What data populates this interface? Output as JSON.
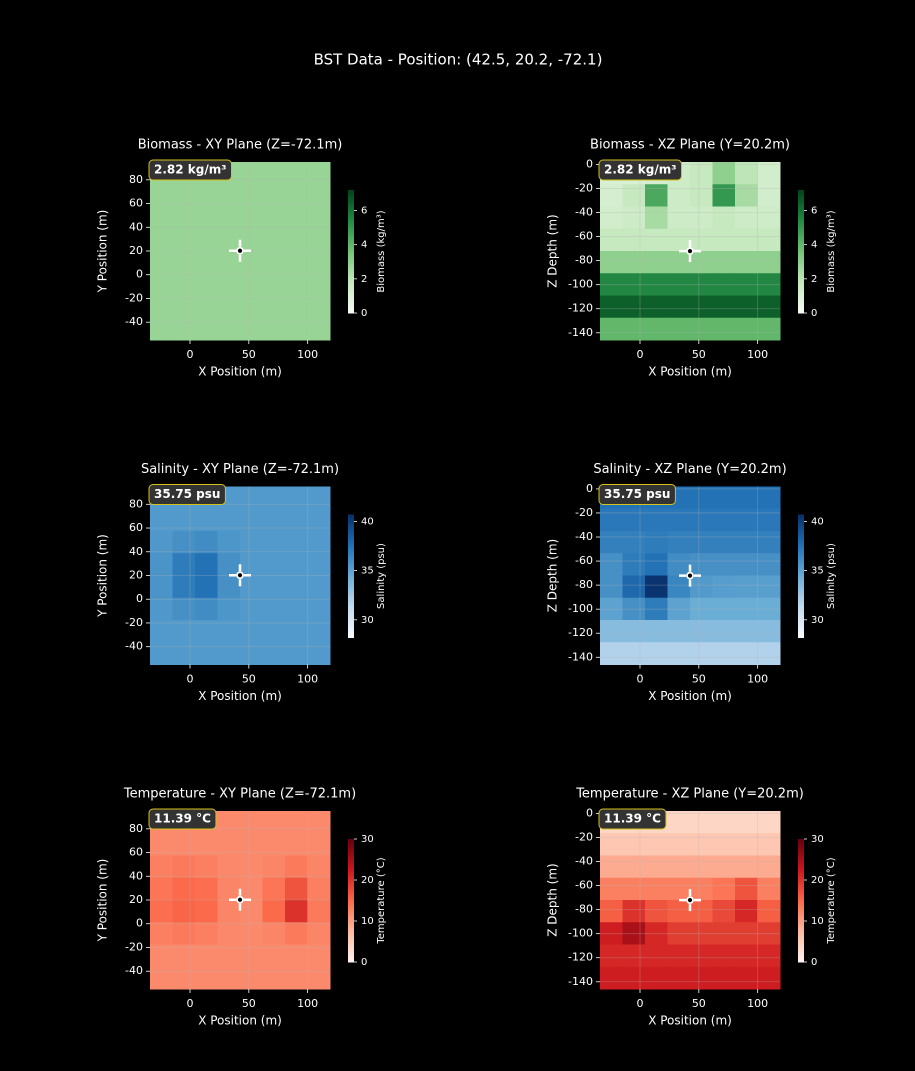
{
  "title": "BST Data - Position: (42.5, 20.2, -72.1)",
  "chart_data": [
    {
      "type": "heatmap",
      "title": "Biomass - XY Plane (Z=-72.1m)",
      "x_label": "X Position (m)",
      "y_label": "Y Position (m)",
      "xlim": [
        -34,
        119
      ],
      "ylim": [
        -55,
        95
      ],
      "xticks": [
        0,
        50,
        100
      ],
      "yticks": [
        -40,
        -20,
        0,
        20,
        40,
        60,
        80
      ],
      "cmap": "Greens",
      "colorbar_label": "Biomass (kg/m³)",
      "colorbar_lim": [
        0,
        7.2
      ],
      "colorbar_ticks": [
        0,
        2,
        4,
        6
      ],
      "annotation": "2.82 kg/m³",
      "marker": [
        42.5,
        20.2
      ],
      "grid": true,
      "values": [
        [
          2.8,
          2.8,
          2.8,
          2.8,
          2.8,
          2.8,
          2.8,
          2.8
        ],
        [
          2.8,
          2.8,
          2.8,
          2.8,
          2.8,
          2.8,
          2.8,
          2.8
        ],
        [
          2.8,
          2.8,
          2.8,
          2.8,
          2.8,
          2.8,
          2.8,
          2.8
        ],
        [
          2.8,
          2.8,
          2.8,
          2.8,
          2.8,
          2.8,
          2.8,
          2.8
        ],
        [
          2.8,
          2.8,
          2.8,
          2.8,
          2.8,
          2.8,
          2.8,
          2.8
        ],
        [
          2.8,
          2.8,
          2.8,
          2.8,
          2.8,
          2.8,
          2.8,
          2.8
        ],
        [
          2.8,
          2.8,
          2.8,
          2.8,
          2.8,
          2.8,
          2.8,
          2.8
        ],
        [
          2.8,
          2.8,
          2.8,
          2.8,
          2.8,
          2.8,
          2.8,
          2.8
        ]
      ]
    },
    {
      "type": "heatmap",
      "title": "Biomass - XZ Plane (Y=20.2m)",
      "x_label": "X Position (m)",
      "y_label": "Z Depth (m)",
      "xlim": [
        -34,
        119
      ],
      "ylim": [
        -146,
        2
      ],
      "xticks": [
        0,
        50,
        100
      ],
      "yticks": [
        -140,
        -120,
        -100,
        -80,
        -60,
        -40,
        -20,
        0
      ],
      "cmap": "Greens",
      "colorbar_label": "Biomass (kg/m³)",
      "colorbar_lim": [
        0,
        7.2
      ],
      "colorbar_ticks": [
        0,
        2,
        4,
        6
      ],
      "annotation": "2.82 kg/m³",
      "marker": [
        42.5,
        -72.1
      ],
      "grid": true,
      "values": [
        [
          1.2,
          1.2,
          1.3,
          1.5,
          1.8,
          3,
          2,
          1.4
        ],
        [
          1.3,
          1.8,
          4.5,
          1.6,
          1.8,
          5,
          2.5,
          1.4
        ],
        [
          1.4,
          1.6,
          2.5,
          1.6,
          1.6,
          1.8,
          1.6,
          1.5
        ],
        [
          1.8,
          1.8,
          1.8,
          1.8,
          1.8,
          1.8,
          1.8,
          1.8
        ],
        [
          3,
          3,
          3,
          3,
          3,
          3,
          3,
          3
        ],
        [
          5.5,
          5.5,
          5.5,
          5.5,
          5.5,
          5.5,
          5.5,
          5.5
        ],
        [
          6.5,
          6.5,
          6.5,
          6.5,
          6.5,
          6.5,
          6.5,
          6.5
        ],
        [
          4,
          4,
          4,
          4,
          4,
          4,
          4,
          4
        ]
      ]
    },
    {
      "type": "heatmap",
      "title": "Salinity - XY Plane (Z=-72.1m)",
      "x_label": "X Position (m)",
      "y_label": "Y Position (m)",
      "xlim": [
        -34,
        119
      ],
      "ylim": [
        -55,
        95
      ],
      "xticks": [
        0,
        50,
        100
      ],
      "yticks": [
        -40,
        -20,
        0,
        20,
        40,
        60,
        80
      ],
      "cmap": "Blues",
      "colorbar_label": "Salinity (psu)",
      "colorbar_lim": [
        28.2,
        40.7
      ],
      "colorbar_ticks": [
        30,
        35,
        40
      ],
      "annotation": "35.75 psu",
      "marker": [
        42.5,
        20.2
      ],
      "grid": true,
      "values": [
        [
          35.5,
          35.5,
          35.5,
          35.5,
          35.5,
          35.5,
          35.5,
          35.5
        ],
        [
          35.5,
          35.5,
          35.5,
          35.5,
          35.5,
          35.5,
          35.5,
          35.5
        ],
        [
          35.6,
          36,
          36.2,
          35.7,
          35.5,
          35.5,
          35.5,
          35.5
        ],
        [
          35.8,
          37,
          37.5,
          36,
          35.5,
          35.5,
          35.5,
          35.5
        ],
        [
          35.8,
          37,
          37.5,
          36,
          35.5,
          35.5,
          35.5,
          35.5
        ],
        [
          35.6,
          36,
          36.2,
          35.7,
          35.5,
          35.5,
          35.5,
          35.5
        ],
        [
          35.5,
          35.5,
          35.5,
          35.5,
          35.5,
          35.5,
          35.5,
          35.5
        ],
        [
          35.5,
          35.5,
          35.5,
          35.5,
          35.5,
          35.5,
          35.5,
          35.5
        ]
      ]
    },
    {
      "type": "heatmap",
      "title": "Salinity - XZ Plane (Y=20.2m)",
      "x_label": "X Position (m)",
      "y_label": "Z Depth (m)",
      "xlim": [
        -34,
        119
      ],
      "ylim": [
        -146,
        2
      ],
      "xticks": [
        0,
        50,
        100
      ],
      "yticks": [
        -140,
        -120,
        -100,
        -80,
        -60,
        -40,
        -20,
        0
      ],
      "cmap": "Blues",
      "colorbar_label": "Salinity (psu)",
      "colorbar_lim": [
        28.2,
        40.7
      ],
      "colorbar_ticks": [
        30,
        35,
        40
      ],
      "annotation": "35.75 psu",
      "marker": [
        42.5,
        -72.1
      ],
      "grid": true,
      "values": [
        [
          37.5,
          37.5,
          37.5,
          37.5,
          37.5,
          37.5,
          37.5,
          37.5
        ],
        [
          37.2,
          37.2,
          37.2,
          37.2,
          37.2,
          37.2,
          37.2,
          37.2
        ],
        [
          36.8,
          36.8,
          37,
          36.8,
          36.8,
          36.8,
          36.8,
          36.8
        ],
        [
          36,
          37,
          37.5,
          36.2,
          36,
          36,
          36,
          36
        ],
        [
          36,
          38,
          40.5,
          36.5,
          35.5,
          35.3,
          35.2,
          35.2
        ],
        [
          35,
          36,
          37,
          35,
          34.5,
          34.5,
          34.5,
          34.5
        ],
        [
          33.5,
          33.5,
          33.5,
          33.5,
          33.5,
          33.5,
          33.5,
          33.5
        ],
        [
          32,
          32,
          32,
          32,
          32,
          32,
          32,
          32
        ]
      ]
    },
    {
      "type": "heatmap",
      "title": "Temperature - XY Plane (Z=-72.1m)",
      "x_label": "X Position (m)",
      "y_label": "Y Position (m)",
      "xlim": [
        -34,
        119
      ],
      "ylim": [
        -55,
        95
      ],
      "xticks": [
        0,
        50,
        100
      ],
      "yticks": [
        -40,
        -20,
        0,
        20,
        40,
        60,
        80
      ],
      "cmap": "Reds",
      "colorbar_label": "Temperature (°C)",
      "colorbar_lim": [
        0,
        30
      ],
      "colorbar_ticks": [
        0,
        10,
        20,
        30
      ],
      "annotation": "11.39 °C",
      "marker": [
        42.5,
        20.2
      ],
      "grid": true,
      "values": [
        [
          12,
          12,
          12,
          12,
          12,
          12,
          12,
          12
        ],
        [
          12,
          12,
          12,
          12,
          12,
          12,
          12,
          12
        ],
        [
          13,
          13.5,
          13,
          12.2,
          12,
          12.5,
          13.5,
          12.5
        ],
        [
          14,
          15,
          14.5,
          12.5,
          12,
          14,
          17,
          13
        ],
        [
          14.5,
          15.5,
          15,
          12.5,
          12,
          15,
          20,
          13.5
        ],
        [
          13,
          13.5,
          13,
          12.2,
          12,
          12.5,
          13.5,
          12.5
        ],
        [
          12,
          12,
          12,
          12,
          12,
          12,
          12,
          12
        ],
        [
          12,
          12,
          12,
          12,
          12,
          12,
          12,
          12
        ]
      ]
    },
    {
      "type": "heatmap",
      "title": "Temperature - XZ Plane (Y=20.2m)",
      "x_label": "X Position (m)",
      "y_label": "Z Depth (m)",
      "xlim": [
        -34,
        119
      ],
      "ylim": [
        -146,
        2
      ],
      "xticks": [
        0,
        50,
        100
      ],
      "yticks": [
        -140,
        -120,
        -100,
        -80,
        -60,
        -40,
        -20,
        0
      ],
      "cmap": "Reds",
      "colorbar_label": "Temperature (°C)",
      "colorbar_lim": [
        0,
        30
      ],
      "colorbar_ticks": [
        0,
        10,
        20,
        30
      ],
      "annotation": "11.39 °C",
      "marker": [
        42.5,
        -72.1
      ],
      "grid": true,
      "values": [
        [
          4,
          4,
          4,
          4,
          4,
          4,
          4,
          4
        ],
        [
          6,
          6,
          6,
          6,
          6,
          6,
          6,
          6
        ],
        [
          9,
          9,
          9,
          9,
          9,
          9,
          9,
          9
        ],
        [
          13,
          13,
          13,
          13,
          13,
          14,
          17,
          13
        ],
        [
          16,
          20,
          17,
          16,
          16,
          18,
          21,
          16
        ],
        [
          22,
          25,
          21,
          19,
          19,
          19,
          19,
          19
        ],
        [
          21,
          21,
          21,
          21,
          21,
          21,
          21,
          21
        ],
        [
          22,
          22,
          22,
          22,
          22,
          22,
          22,
          22
        ]
      ]
    }
  ]
}
